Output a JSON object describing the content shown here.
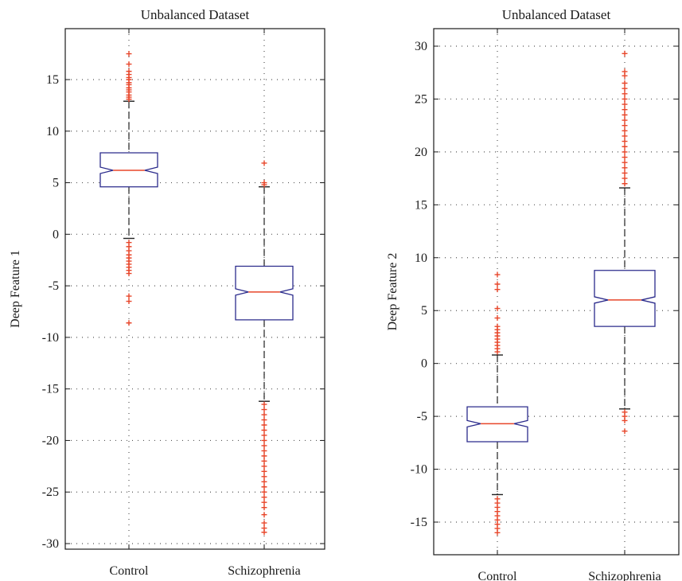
{
  "chart_data": [
    {
      "type": "box",
      "title": "Unbalanced Dataset",
      "xlabel": "",
      "ylabel": "Deep Feature 1",
      "ylim": [
        -31,
        20
      ],
      "yticks": [
        15,
        10,
        5,
        0,
        -5,
        -10,
        -15,
        -20,
        -25,
        -30
      ],
      "ytick_labels": [
        "15",
        "10",
        "5",
        "0",
        "-5",
        "-10",
        "-15",
        "-20",
        "-25",
        "-30"
      ],
      "grid": true,
      "categories": [
        "Control",
        "Schizophrenia"
      ],
      "boxes": [
        {
          "category": "Control",
          "q1": 4.6,
          "median": 6.2,
          "q3": 7.9,
          "whisker_low": -0.4,
          "whisker_high": 12.9,
          "outliers": [
            17.5,
            16.5,
            15.8,
            15.5,
            15.2,
            15.0,
            14.7,
            14.5,
            14.2,
            14.0,
            13.8,
            13.5,
            13.3,
            13.1,
            -0.8,
            -1.2,
            -1.6,
            -2.0,
            -2.3,
            -2.6,
            -2.9,
            -3.2,
            -3.5,
            -3.8,
            -6.0,
            -6.5,
            -8.6
          ]
        },
        {
          "category": "Schizophrenia",
          "q1": -8.3,
          "median": -5.6,
          "q3": -3.1,
          "whisker_low": -16.2,
          "whisker_high": 4.6,
          "outliers": [
            6.9,
            5.0,
            4.8,
            -16.5,
            -17.0,
            -17.5,
            -18.0,
            -18.5,
            -19.0,
            -19.5,
            -20.0,
            -20.5,
            -21.0,
            -21.5,
            -22.0,
            -22.5,
            -23.0,
            -23.5,
            -24.0,
            -24.5,
            -25.0,
            -25.5,
            -26.0,
            -26.5,
            -27.2,
            -28.0,
            -28.5,
            -28.9
          ]
        }
      ]
    },
    {
      "type": "box",
      "title": "Unbalanced Dataset",
      "xlabel": "",
      "ylabel": "Deep Feature 2",
      "ylim": [
        -18,
        31
      ],
      "yticks": [
        30,
        25,
        20,
        15,
        10,
        5,
        0,
        -5,
        -10,
        -15
      ],
      "ytick_labels": [
        "30",
        "25",
        "20",
        "15",
        "10",
        "5",
        "0",
        "-5",
        "-10",
        "-15"
      ],
      "grid": true,
      "categories": [
        "Control",
        "Schizophrenia"
      ],
      "boxes": [
        {
          "category": "Control",
          "q1": -7.4,
          "median": -5.7,
          "q3": -4.1,
          "whisker_low": -12.4,
          "whisker_high": 0.8,
          "outliers": [
            8.4,
            7.5,
            7.0,
            5.2,
            4.3,
            3.5,
            3.2,
            2.9,
            2.6,
            2.3,
            2.0,
            1.7,
            1.4,
            1.1,
            -12.8,
            -13.2,
            -13.6,
            -14.0,
            -14.4,
            -14.8,
            -15.2,
            -15.6,
            -16.0
          ]
        },
        {
          "category": "Schizophrenia",
          "q1": 3.5,
          "median": 6.0,
          "q3": 8.8,
          "whisker_low": -4.3,
          "whisker_high": 16.6,
          "outliers": [
            29.3,
            27.6,
            27.2,
            26.5,
            26.0,
            25.5,
            25.0,
            24.5,
            24.0,
            23.5,
            23.0,
            22.5,
            22.0,
            21.5,
            21.0,
            20.5,
            20.0,
            19.5,
            19.0,
            18.5,
            18.0,
            17.5,
            17.0,
            -4.6,
            -5.0,
            -5.4,
            -6.4
          ]
        }
      ]
    }
  ],
  "colors": {
    "box": "#2b2b8c",
    "median": "#e8462a",
    "outlier": "#e8462a",
    "whisker": "#222222",
    "axis": "#1a1a1a",
    "grid": "#555555"
  }
}
